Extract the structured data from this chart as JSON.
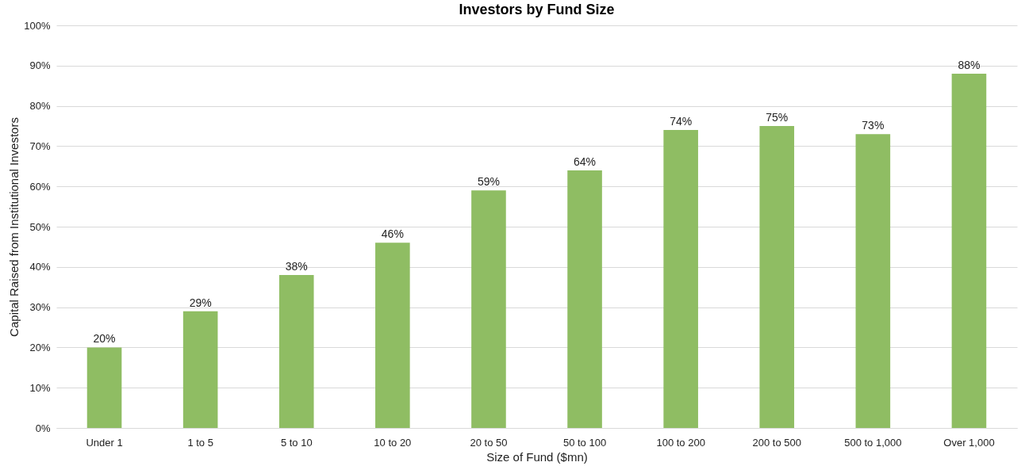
{
  "chart_data": {
    "type": "bar",
    "title": "Investors by Fund Size",
    "xlabel": "Size of Fund ($mn)",
    "ylabel": "Capital Raised from Institutional Investors",
    "categories": [
      "Under 1",
      "1 to 5",
      "5 to 10",
      "10 to 20",
      "20 to 50",
      "50 to 100",
      "100 to 200",
      "200 to 500",
      "500 to 1,000",
      "Over 1,000"
    ],
    "values": [
      20,
      29,
      38,
      46,
      59,
      64,
      74,
      75,
      73,
      88
    ],
    "value_labels": [
      "20%",
      "29%",
      "38%",
      "46%",
      "59%",
      "64%",
      "74%",
      "75%",
      "73%",
      "88%"
    ],
    "color": "#8fbd63",
    "ylim": [
      0,
      100
    ],
    "yticks": [
      {
        "value": 0,
        "label": "0%"
      },
      {
        "value": 10,
        "label": "10%"
      },
      {
        "value": 20,
        "label": "20%"
      },
      {
        "value": 30,
        "label": "30%"
      },
      {
        "value": 40,
        "label": "40%"
      },
      {
        "value": 50,
        "label": "50%"
      },
      {
        "value": 60,
        "label": "60%"
      },
      {
        "value": 70,
        "label": "70%"
      },
      {
        "value": 80,
        "label": "80%"
      },
      {
        "value": 90,
        "label": "90%"
      },
      {
        "value": 100,
        "label": "100%"
      }
    ],
    "grid": "y"
  }
}
